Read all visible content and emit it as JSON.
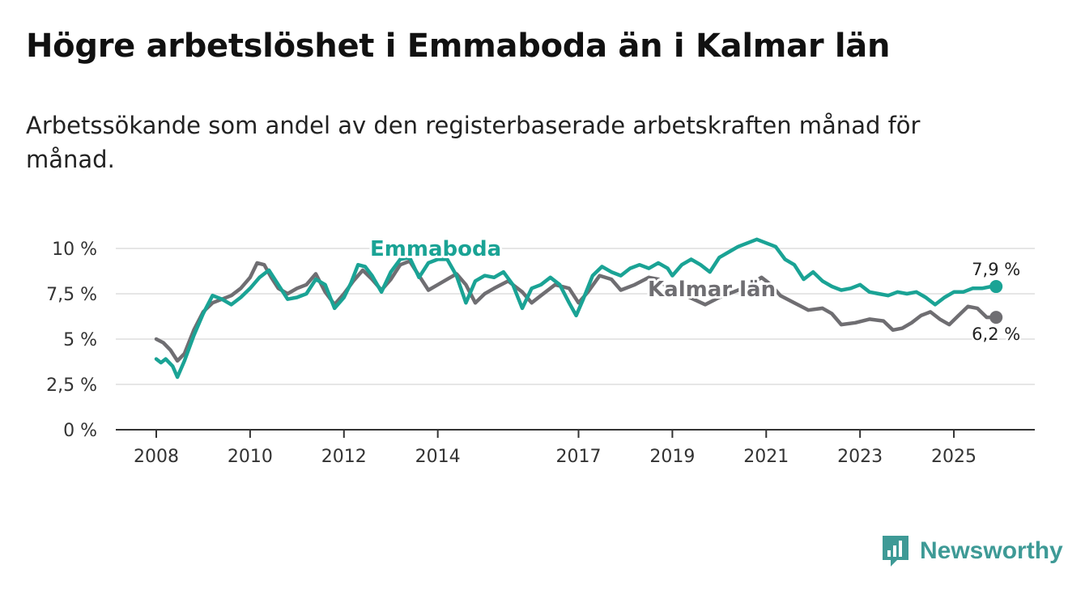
{
  "header": {
    "title": "Högre arbetslöshet i Emmaboda än i Kalmar län",
    "subtitle": "Arbetssökande som andel av den registerbaserade arbetskraften månad för månad."
  },
  "colors": {
    "emmaboda": "#1aa395",
    "kalmar": "#6f6e72",
    "grid": "#dddddd",
    "axis": "#333333",
    "brand": "#3e9a96"
  },
  "brand": {
    "name": "Newsworthy"
  },
  "chart_data": {
    "type": "line",
    "title": "Högre arbetslöshet i Emmaboda än i Kalmar län",
    "subtitle": "Arbetssökande som andel av den registerbaserade arbetskraften månad för månad.",
    "xlabel": "",
    "ylabel": "",
    "x_range": [
      2008,
      2026
    ],
    "ylim": [
      0,
      10
    ],
    "y_ticks": [
      0,
      2.5,
      5,
      7.5,
      10
    ],
    "y_tick_labels": [
      "0 %",
      "2,5 %",
      "5 %",
      "7,5 %",
      "10 %"
    ],
    "x_ticks": [
      2008,
      2010,
      2012,
      2014,
      2017,
      2019,
      2021,
      2023,
      2025
    ],
    "x_tick_labels": [
      "2008",
      "2010",
      "2012",
      "2014",
      "2017",
      "2019",
      "2021",
      "2023",
      "2025"
    ],
    "grid": true,
    "legend": "inline labels on lines",
    "series": [
      {
        "name": "Kalmar län",
        "color": "#6f6e72",
        "label": "Kalmar län",
        "end_label": "6,2 %",
        "last_value": 6.2,
        "points": [
          [
            2008.0,
            5.0
          ],
          [
            2008.15,
            4.8
          ],
          [
            2008.3,
            4.4
          ],
          [
            2008.45,
            3.8
          ],
          [
            2008.6,
            4.2
          ],
          [
            2008.8,
            5.5
          ],
          [
            2009.0,
            6.5
          ],
          [
            2009.2,
            7.0
          ],
          [
            2009.4,
            7.2
          ],
          [
            2009.6,
            7.4
          ],
          [
            2009.8,
            7.8
          ],
          [
            2010.0,
            8.4
          ],
          [
            2010.15,
            9.2
          ],
          [
            2010.3,
            9.1
          ],
          [
            2010.45,
            8.4
          ],
          [
            2010.6,
            7.8
          ],
          [
            2010.8,
            7.5
          ],
          [
            2011.0,
            7.8
          ],
          [
            2011.2,
            8.0
          ],
          [
            2011.4,
            8.6
          ],
          [
            2011.6,
            7.6
          ],
          [
            2011.8,
            6.9
          ],
          [
            2012.0,
            7.5
          ],
          [
            2012.2,
            8.2
          ],
          [
            2012.4,
            8.8
          ],
          [
            2012.6,
            8.3
          ],
          [
            2012.8,
            7.7
          ],
          [
            2013.0,
            8.3
          ],
          [
            2013.2,
            9.1
          ],
          [
            2013.4,
            9.3
          ],
          [
            2013.6,
            8.5
          ],
          [
            2013.8,
            7.7
          ],
          [
            2014.0,
            8.0
          ],
          [
            2014.2,
            8.3
          ],
          [
            2014.4,
            8.6
          ],
          [
            2014.6,
            8.0
          ],
          [
            2014.8,
            7.0
          ],
          [
            2015.0,
            7.5
          ],
          [
            2015.2,
            7.8
          ],
          [
            2015.5,
            8.2
          ],
          [
            2015.8,
            7.6
          ],
          [
            2016.0,
            7.0
          ],
          [
            2016.2,
            7.4
          ],
          [
            2016.5,
            8.0
          ],
          [
            2016.8,
            7.8
          ],
          [
            2017.0,
            7.0
          ],
          [
            2017.2,
            7.6
          ],
          [
            2017.45,
            8.5
          ],
          [
            2017.7,
            8.3
          ],
          [
            2017.9,
            7.7
          ],
          [
            2018.2,
            8.0
          ],
          [
            2018.5,
            8.4
          ],
          [
            2018.7,
            8.3
          ],
          [
            2019.0,
            7.6
          ],
          [
            2019.2,
            7.5
          ],
          [
            2019.45,
            7.2
          ],
          [
            2019.7,
            6.9
          ],
          [
            2020.0,
            7.3
          ],
          [
            2020.3,
            7.6
          ],
          [
            2020.6,
            7.9
          ],
          [
            2020.9,
            8.4
          ],
          [
            2021.1,
            8.0
          ],
          [
            2021.3,
            7.4
          ],
          [
            2021.6,
            7.0
          ],
          [
            2021.9,
            6.6
          ],
          [
            2022.2,
            6.7
          ],
          [
            2022.4,
            6.4
          ],
          [
            2022.6,
            5.8
          ],
          [
            2022.9,
            5.9
          ],
          [
            2023.2,
            6.1
          ],
          [
            2023.5,
            6.0
          ],
          [
            2023.7,
            5.5
          ],
          [
            2023.9,
            5.6
          ],
          [
            2024.1,
            5.9
          ],
          [
            2024.3,
            6.3
          ],
          [
            2024.5,
            6.5
          ],
          [
            2024.7,
            6.1
          ],
          [
            2024.9,
            5.8
          ],
          [
            2025.1,
            6.3
          ],
          [
            2025.3,
            6.8
          ],
          [
            2025.5,
            6.7
          ],
          [
            2025.7,
            6.2
          ],
          [
            2025.9,
            6.2
          ]
        ]
      },
      {
        "name": "Emmaboda",
        "color": "#1aa395",
        "label": "Emmaboda",
        "end_label": "7,9 %",
        "last_value": 7.9,
        "points": [
          [
            2008.0,
            3.9
          ],
          [
            2008.1,
            3.7
          ],
          [
            2008.2,
            3.9
          ],
          [
            2008.35,
            3.5
          ],
          [
            2008.45,
            2.9
          ],
          [
            2008.6,
            3.8
          ],
          [
            2008.8,
            5.2
          ],
          [
            2009.0,
            6.4
          ],
          [
            2009.2,
            7.4
          ],
          [
            2009.4,
            7.2
          ],
          [
            2009.6,
            6.9
          ],
          [
            2009.8,
            7.3
          ],
          [
            2010.0,
            7.8
          ],
          [
            2010.2,
            8.4
          ],
          [
            2010.4,
            8.8
          ],
          [
            2010.6,
            8.0
          ],
          [
            2010.8,
            7.2
          ],
          [
            2011.0,
            7.3
          ],
          [
            2011.2,
            7.5
          ],
          [
            2011.4,
            8.3
          ],
          [
            2011.6,
            8.0
          ],
          [
            2011.8,
            6.7
          ],
          [
            2012.0,
            7.3
          ],
          [
            2012.15,
            8.1
          ],
          [
            2012.3,
            9.1
          ],
          [
            2012.45,
            9.0
          ],
          [
            2012.6,
            8.5
          ],
          [
            2012.8,
            7.6
          ],
          [
            2013.0,
            8.7
          ],
          [
            2013.2,
            9.4
          ],
          [
            2013.4,
            9.5
          ],
          [
            2013.6,
            8.4
          ],
          [
            2013.8,
            9.2
          ],
          [
            2014.0,
            9.4
          ],
          [
            2014.2,
            9.4
          ],
          [
            2014.4,
            8.5
          ],
          [
            2014.6,
            7.0
          ],
          [
            2014.8,
            8.2
          ],
          [
            2015.0,
            8.5
          ],
          [
            2015.2,
            8.4
          ],
          [
            2015.4,
            8.7
          ],
          [
            2015.6,
            8.0
          ],
          [
            2015.8,
            6.7
          ],
          [
            2016.0,
            7.8
          ],
          [
            2016.2,
            8.0
          ],
          [
            2016.4,
            8.4
          ],
          [
            2016.6,
            8.0
          ],
          [
            2016.8,
            7.0
          ],
          [
            2016.95,
            6.3
          ],
          [
            2017.1,
            7.2
          ],
          [
            2017.3,
            8.5
          ],
          [
            2017.5,
            9.0
          ],
          [
            2017.7,
            8.7
          ],
          [
            2017.9,
            8.5
          ],
          [
            2018.1,
            8.9
          ],
          [
            2018.3,
            9.1
          ],
          [
            2018.5,
            8.9
          ],
          [
            2018.7,
            9.2
          ],
          [
            2018.9,
            8.9
          ],
          [
            2019.0,
            8.5
          ],
          [
            2019.2,
            9.1
          ],
          [
            2019.4,
            9.4
          ],
          [
            2019.6,
            9.1
          ],
          [
            2019.8,
            8.7
          ],
          [
            2020.0,
            9.5
          ],
          [
            2020.2,
            9.8
          ],
          [
            2020.4,
            10.1
          ],
          [
            2020.6,
            10.3
          ],
          [
            2020.8,
            10.5
          ],
          [
            2021.0,
            10.3
          ],
          [
            2021.2,
            10.1
          ],
          [
            2021.4,
            9.4
          ],
          [
            2021.6,
            9.1
          ],
          [
            2021.8,
            8.3
          ],
          [
            2022.0,
            8.7
          ],
          [
            2022.2,
            8.2
          ],
          [
            2022.4,
            7.9
          ],
          [
            2022.6,
            7.7
          ],
          [
            2022.8,
            7.8
          ],
          [
            2023.0,
            8.0
          ],
          [
            2023.2,
            7.6
          ],
          [
            2023.4,
            7.5
          ],
          [
            2023.6,
            7.4
          ],
          [
            2023.8,
            7.6
          ],
          [
            2024.0,
            7.5
          ],
          [
            2024.2,
            7.6
          ],
          [
            2024.4,
            7.3
          ],
          [
            2024.6,
            6.9
          ],
          [
            2024.8,
            7.3
          ],
          [
            2025.0,
            7.6
          ],
          [
            2025.2,
            7.6
          ],
          [
            2025.4,
            7.8
          ],
          [
            2025.6,
            7.8
          ],
          [
            2025.8,
            7.9
          ],
          [
            2025.9,
            7.9
          ]
        ]
      }
    ]
  }
}
